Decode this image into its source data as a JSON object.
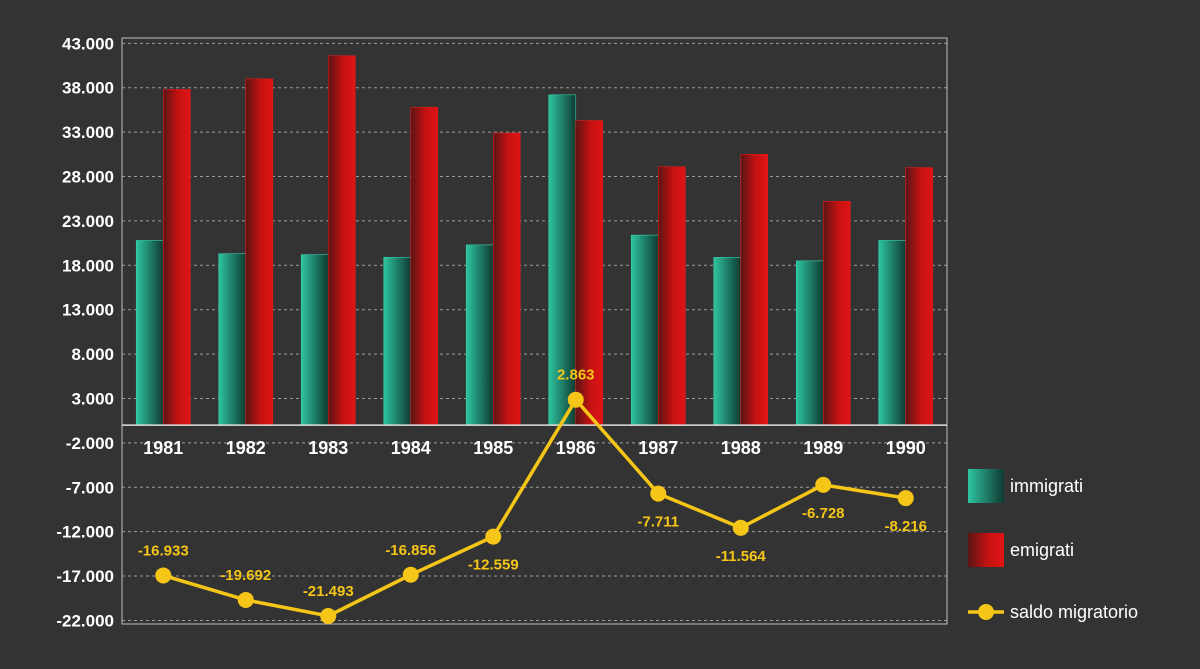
{
  "chart_data": {
    "type": "bar",
    "categories": [
      "1981",
      "1982",
      "1983",
      "1984",
      "1985",
      "1986",
      "1987",
      "1988",
      "1989",
      "1990"
    ],
    "series": [
      {
        "name": "immigrati",
        "type": "bar",
        "color": "#2ec4a0",
        "values": [
          20800,
          19300,
          19200,
          18900,
          20300,
          37200,
          21400,
          18900,
          18500,
          20800
        ]
      },
      {
        "name": "emigrati",
        "type": "bar",
        "color": "#d11414",
        "values": [
          37800,
          39000,
          41600,
          35800,
          32900,
          34300,
          29100,
          30500,
          25200,
          29000
        ]
      },
      {
        "name": "saldo migratorio",
        "type": "line",
        "color": "#f5c518",
        "values": [
          -16933,
          -19692,
          -21493,
          -16856,
          -12559,
          2863,
          -7711,
          -11564,
          -6728,
          -8216
        ],
        "labels": [
          "-16.933",
          "-19.692",
          "-21.493",
          "-16.856",
          "-12.559",
          "2.863",
          "-7.711",
          "-11.564",
          "-6.728",
          "-8.216"
        ]
      }
    ],
    "yticks": [
      43000,
      38000,
      33000,
      28000,
      23000,
      18000,
      13000,
      8000,
      3000,
      -2000,
      -7000,
      -12000,
      -17000,
      -22000
    ],
    "ytick_labels": [
      "43.000",
      "38.000",
      "33.000",
      "28.000",
      "23.000",
      "18.000",
      "13.000",
      "8.000",
      "3.000",
      "-2.000",
      "-7.000",
      "-12.000",
      "-17.000",
      "-22.000"
    ],
    "ylim": [
      -22400,
      43600
    ],
    "grid": true,
    "legend_position": "right",
    "title": "",
    "xlabel": "",
    "ylabel": ""
  },
  "colors": {
    "background": "#333333",
    "plot_border": "#bfbfbf",
    "grid": "#9a9a9a",
    "text": "#ffffff",
    "immigrati": "#2ec4a0",
    "emigrati": "#d11414",
    "saldo": "#f5c518"
  }
}
